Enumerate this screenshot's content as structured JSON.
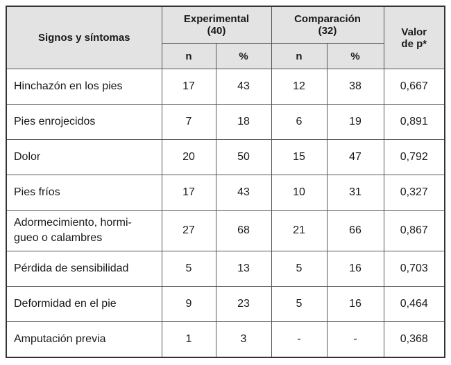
{
  "header": {
    "signs": "Signos y síntomas",
    "experimental": "Experimental\n(40)",
    "experimental_line1": "Experimental",
    "experimental_line2": "(40)",
    "comparacion_line1": "Comparación",
    "comparacion_line2": "(32)",
    "pvalue_line1": "Valor",
    "pvalue_line2": "de p*",
    "n": "n",
    "pct": "%"
  },
  "rows": [
    {
      "label": "Hinchazón en los pies",
      "exp_n": "17",
      "exp_pct": "43",
      "comp_n": "12",
      "comp_pct": "38",
      "p": "0,667"
    },
    {
      "label": "Pies enrojecidos",
      "exp_n": "7",
      "exp_pct": "18",
      "comp_n": "6",
      "comp_pct": "19",
      "p": "0,891"
    },
    {
      "label": "Dolor",
      "exp_n": "20",
      "exp_pct": "50",
      "comp_n": "15",
      "comp_pct": "47",
      "p": "0,792"
    },
    {
      "label": "Pies fríos",
      "exp_n": "17",
      "exp_pct": "43",
      "comp_n": "10",
      "comp_pct": "31",
      "p": "0,327"
    },
    {
      "label_line1": "Adormecimiento, hormi-",
      "label_line2": "gueo o calambres",
      "exp_n": "27",
      "exp_pct": "68",
      "comp_n": "21",
      "comp_pct": "66",
      "p": "0,867"
    },
    {
      "label": "Pérdida de sensibilidad",
      "exp_n": "5",
      "exp_pct": "13",
      "comp_n": "5",
      "comp_pct": "16",
      "p": "0,703"
    },
    {
      "label": "Deformidad en el pie",
      "exp_n": "9",
      "exp_pct": "23",
      "comp_n": "5",
      "comp_pct": "16",
      "p": "0,464"
    },
    {
      "label": "Amputación previa",
      "exp_n": "1",
      "exp_pct": "3",
      "comp_n": "-",
      "comp_pct": "-",
      "p": "0,368"
    }
  ]
}
